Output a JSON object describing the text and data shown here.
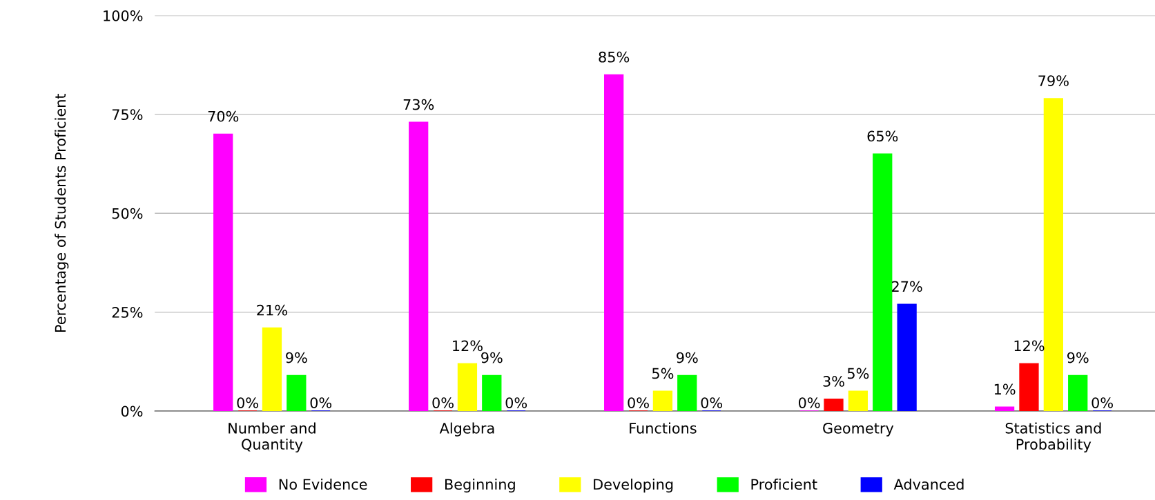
{
  "chart_data": {
    "type": "bar",
    "ylabel": "Percentage of Students Proficient",
    "categories": [
      "Number and\nQuantity",
      "Algebra",
      "Functions",
      "Geometry",
      "Statistics and\nProbability"
    ],
    "series": [
      {
        "name": "No Evidence",
        "color": "#ff00ff",
        "values": [
          70,
          73,
          85,
          0,
          1
        ],
        "value_labels": [
          "70%",
          "73%",
          "85%",
          "0%",
          "1%"
        ]
      },
      {
        "name": "Beginning",
        "color": "#ff0000",
        "values": [
          0,
          0,
          0,
          3,
          12
        ],
        "value_labels": [
          "0%",
          "0%",
          "0%",
          "3%",
          "12%"
        ]
      },
      {
        "name": "Developing",
        "color": "#ffff00",
        "values": [
          21,
          12,
          5,
          5,
          79
        ],
        "value_labels": [
          "21%",
          "12%",
          "5%",
          "5%",
          "79%"
        ]
      },
      {
        "name": "Proficient",
        "color": "#00ff00",
        "values": [
          9,
          9,
          9,
          65,
          9
        ],
        "value_labels": [
          "9%",
          "9%",
          "9%",
          "65%",
          "9%"
        ]
      },
      {
        "name": "Advanced",
        "color": "#0000ff",
        "values": [
          0,
          0,
          0,
          27,
          0
        ],
        "value_labels": [
          "0%",
          "0%",
          "0%",
          "27%",
          "0%"
        ]
      }
    ],
    "ylim": [
      0,
      100
    ],
    "yticks": [
      {
        "value": 0,
        "label": "0%"
      },
      {
        "value": 25,
        "label": "25%"
      },
      {
        "value": 50,
        "label": "50%"
      },
      {
        "value": 75,
        "label": "75%"
      },
      {
        "value": 100,
        "label": "100%"
      }
    ],
    "grid": "y",
    "legend": "bottom"
  }
}
